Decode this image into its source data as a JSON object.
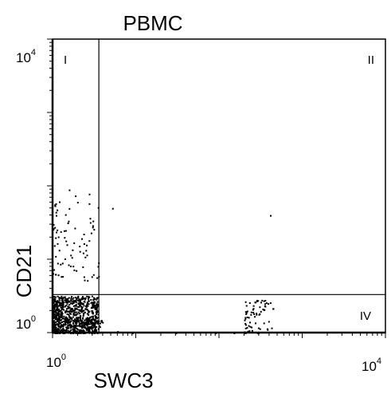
{
  "chart_data": {
    "type": "scatter",
    "title": "PBMC",
    "xlabel": "SWC3",
    "ylabel": "CD21",
    "xscale": "log",
    "yscale": "log",
    "xlim": [
      1,
      10000
    ],
    "ylim": [
      1,
      10000
    ],
    "x_ticks": [
      {
        "value": 1,
        "base": "10",
        "exp": "0"
      },
      {
        "value": 10000,
        "base": "10",
        "exp": "4"
      }
    ],
    "y_ticks": [
      {
        "value": 1,
        "base": "10",
        "exp": "0"
      },
      {
        "value": 10000,
        "base": "10",
        "exp": "4"
      }
    ],
    "quadrant_gates": {
      "x": 3.6,
      "y": 3.3
    },
    "quadrant_labels": [
      {
        "text": "I",
        "position": "top-left"
      },
      {
        "text": "II",
        "position": "top-right"
      },
      {
        "text": "IV",
        "position": "bottom-right"
      }
    ],
    "populations": [
      {
        "x_range": [
          1,
          3.5
        ],
        "y_range": [
          1,
          3.2
        ],
        "count": 900
      },
      {
        "x_range": [
          2.6,
          4.0
        ],
        "y_range": [
          1,
          1.6
        ],
        "count": 40
      },
      {
        "x_range": [
          1.0,
          3.6
        ],
        "y_range": [
          5,
          90
        ],
        "count": 85
      },
      {
        "x_range": [
          200,
          450
        ],
        "y_range": [
          1,
          2.8
        ],
        "count": 70
      }
    ],
    "outliers": [
      {
        "x": 410,
        "y": 40
      },
      {
        "x": 6,
        "y": 1.05
      },
      {
        "x": 9,
        "y": 1.0
      },
      {
        "x": 30,
        "y": 1.0
      },
      {
        "x": 90,
        "y": 1.0
      },
      {
        "x": 150,
        "y": 1.0
      },
      {
        "x": 5.2,
        "y": 50
      }
    ],
    "grid": false,
    "legend": "none",
    "point_color": "#000000"
  }
}
